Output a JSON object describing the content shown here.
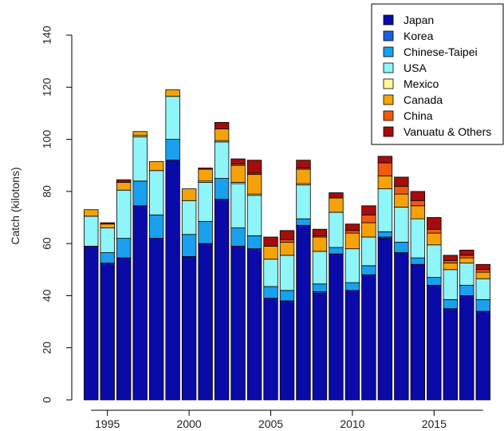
{
  "chart_data": {
    "type": "bar",
    "stacked": true,
    "title": "",
    "xlabel": "",
    "ylabel": "Catch (kilotons)",
    "ylim": [
      0,
      140
    ],
    "yticks": [
      0,
      20,
      40,
      60,
      80,
      100,
      120,
      140
    ],
    "xticks": [
      1995,
      2000,
      2005,
      2010,
      2015
    ],
    "grid": false,
    "legend_position": "top-right",
    "categories": [
      1994,
      1995,
      1996,
      1997,
      1998,
      1999,
      2000,
      2001,
      2002,
      2003,
      2004,
      2005,
      2006,
      2007,
      2008,
      2009,
      2010,
      2011,
      2012,
      2013,
      2014,
      2015,
      2016,
      2017,
      2018
    ],
    "series": [
      {
        "name": "Japan",
        "color": "#0a0aa8",
        "values": [
          59,
          52.5,
          54.5,
          74.5,
          62,
          92,
          55,
          60,
          77,
          59,
          58,
          39,
          38,
          67,
          41,
          56,
          42,
          48,
          62,
          56.5,
          52,
          44,
          35,
          40,
          34
        ]
      },
      {
        "name": "Korea",
        "color": "#1f5fe0",
        "values": [
          0,
          0,
          0,
          0,
          0,
          0,
          0,
          0,
          0,
          0,
          0,
          0,
          0,
          0,
          0.5,
          0,
          0,
          0,
          0.5,
          0,
          0,
          0,
          0,
          0,
          0
        ]
      },
      {
        "name": "Chinese-Taipei",
        "color": "#1aa0ee",
        "values": [
          0,
          4,
          7.5,
          9.5,
          9,
          8,
          8.5,
          8.5,
          8,
          7,
          5,
          4.5,
          4,
          2.5,
          3,
          2.5,
          3,
          3.5,
          2,
          4,
          2.5,
          3,
          3.5,
          4,
          4.5
        ]
      },
      {
        "name": "USA",
        "color": "#8ef5f8",
        "values": [
          11.5,
          9.5,
          18.5,
          17,
          17,
          16.5,
          13,
          15,
          14,
          17,
          15.5,
          10.5,
          13.5,
          13,
          12.5,
          13.5,
          13,
          11,
          16.5,
          13.5,
          15,
          12.5,
          11.5,
          8.5,
          8
        ]
      },
      {
        "name": "Mexico",
        "color": "#fff89a",
        "values": [
          0,
          0,
          0,
          0.5,
          0,
          0,
          0,
          0.5,
          0.5,
          0.5,
          0.5,
          0,
          0,
          0.5,
          0,
          0,
          0,
          0,
          0,
          0,
          0,
          0,
          0,
          0,
          0
        ]
      },
      {
        "name": "Canada",
        "color": "#f5a20a",
        "values": [
          2.5,
          1.5,
          3,
          1.5,
          3.5,
          2.5,
          4.5,
          4.5,
          4.5,
          6.5,
          7.5,
          5,
          5,
          5.5,
          5.5,
          5.5,
          6,
          5.5,
          5,
          5,
          5,
          4.5,
          2.5,
          2,
          2.5
        ]
      },
      {
        "name": "China",
        "color": "#ee5a0e",
        "values": [
          0,
          0,
          0,
          0,
          0,
          0,
          0,
          0,
          0,
          0.5,
          0.5,
          0,
          1,
          0.5,
          0.5,
          0,
          1,
          3,
          5,
          3,
          2,
          1.5,
          1,
          1,
          1
        ]
      },
      {
        "name": "Vanuatu & Others",
        "color": "#a50c0c",
        "values": [
          0,
          0.5,
          1,
          0,
          0,
          0,
          0,
          0.5,
          2.5,
          2,
          5,
          3.5,
          3.5,
          3,
          2.5,
          2,
          2.5,
          3.5,
          2.5,
          3.5,
          3.5,
          4.5,
          2,
          2,
          2
        ]
      }
    ]
  }
}
